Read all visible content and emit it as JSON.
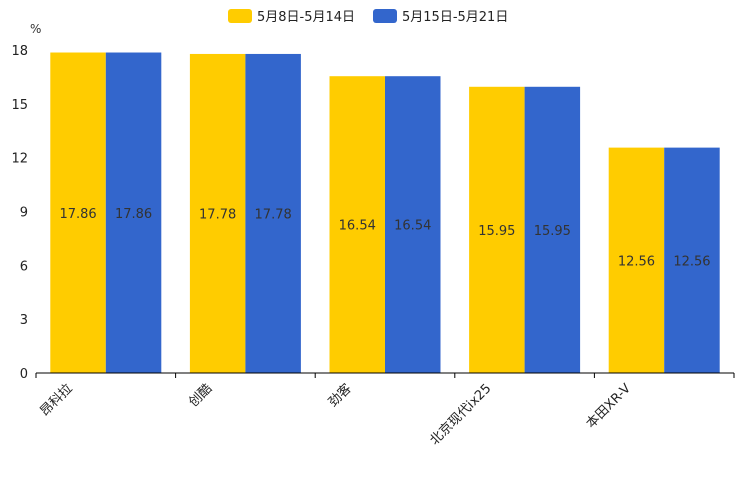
{
  "chart_data": {
    "type": "bar",
    "title": "",
    "ylabel": "%",
    "xlabel": "",
    "ylim": [
      0,
      18
    ],
    "yticks": [
      0,
      3,
      6,
      9,
      12,
      15,
      18
    ],
    "categories": [
      "昂科拉",
      "创酷",
      "劲客",
      "北京现代ix25",
      "本田XR-V"
    ],
    "series": [
      {
        "name": "5月8日-5月14日",
        "color": "#FFCC00",
        "values": [
          17.86,
          17.78,
          16.54,
          15.95,
          12.56
        ],
        "labels": [
          "17.86",
          "17.78",
          "16.54",
          "15.95",
          "12.56"
        ]
      },
      {
        "name": "5月15日-5月21日",
        "color": "#3366CC",
        "values": [
          17.86,
          17.78,
          16.54,
          15.95,
          12.56
        ],
        "labels": [
          "17.86",
          "17.78",
          "16.54",
          "15.95",
          "12.56"
        ]
      }
    ],
    "legend": "top-center",
    "grid": false
  }
}
